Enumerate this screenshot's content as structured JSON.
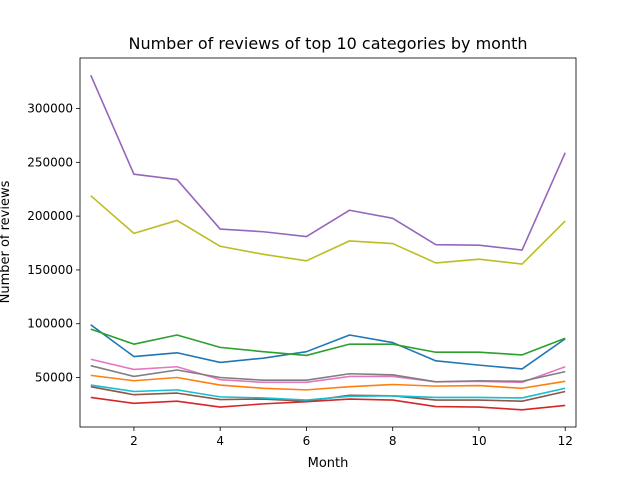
{
  "chart_data": {
    "type": "line",
    "title": "Number of reviews of top 10 categories by month",
    "xlabel": "Month",
    "ylabel": "Number of reviews",
    "xlim": [
      0.75,
      12.25
    ],
    "ylim": [
      4000,
      347000
    ],
    "xticks": [
      2,
      4,
      6,
      8,
      10,
      12
    ],
    "yticks": [
      50000,
      100000,
      150000,
      200000,
      250000,
      300000
    ],
    "grid": false,
    "legend": "none",
    "x": [
      1,
      2,
      3,
      4,
      5,
      6,
      7,
      8,
      9,
      10,
      11,
      12
    ],
    "series": [
      {
        "color": "#1f77b4",
        "values": [
          99000,
          69500,
          73000,
          64000,
          68000,
          74000,
          89500,
          82500,
          65500,
          61500,
          58000,
          86000
        ]
      },
      {
        "color": "#ff7f0e",
        "values": [
          52000,
          47000,
          50000,
          43000,
          40000,
          38500,
          41500,
          43500,
          42000,
          42500,
          40000,
          46500
        ]
      },
      {
        "color": "#2ca02c",
        "values": [
          95000,
          81000,
          89500,
          78000,
          74000,
          70500,
          81000,
          81000,
          73500,
          73500,
          71000,
          86500
        ]
      },
      {
        "color": "#d62728",
        "values": [
          31500,
          26000,
          28000,
          22500,
          25500,
          27500,
          30000,
          29000,
          23000,
          22500,
          20000,
          24000
        ]
      },
      {
        "color": "#9467bd",
        "values": [
          331000,
          239000,
          234000,
          188000,
          185500,
          181000,
          205500,
          198000,
          173500,
          173000,
          168500,
          259000
        ]
      },
      {
        "color": "#8c564b",
        "values": [
          41500,
          34000,
          35500,
          29500,
          30000,
          28000,
          33500,
          33000,
          29000,
          29000,
          28000,
          37000
        ]
      },
      {
        "color": "#e377c2",
        "values": [
          67000,
          57500,
          60000,
          48000,
          45500,
          45500,
          51000,
          51000,
          46000,
          46500,
          45500,
          60000
        ]
      },
      {
        "color": "#7f7f7f",
        "values": [
          61000,
          51000,
          57000,
          50000,
          47500,
          47500,
          53500,
          52500,
          46000,
          47000,
          46500,
          55500
        ]
      },
      {
        "color": "#bcbd22",
        "values": [
          219000,
          184000,
          196000,
          172000,
          164500,
          158500,
          177000,
          174500,
          156500,
          160000,
          155500,
          195500
        ]
      },
      {
        "color": "#17becf",
        "values": [
          43000,
          37000,
          38500,
          32000,
          31000,
          29000,
          32500,
          33000,
          31500,
          31500,
          31000,
          40000
        ]
      }
    ]
  }
}
